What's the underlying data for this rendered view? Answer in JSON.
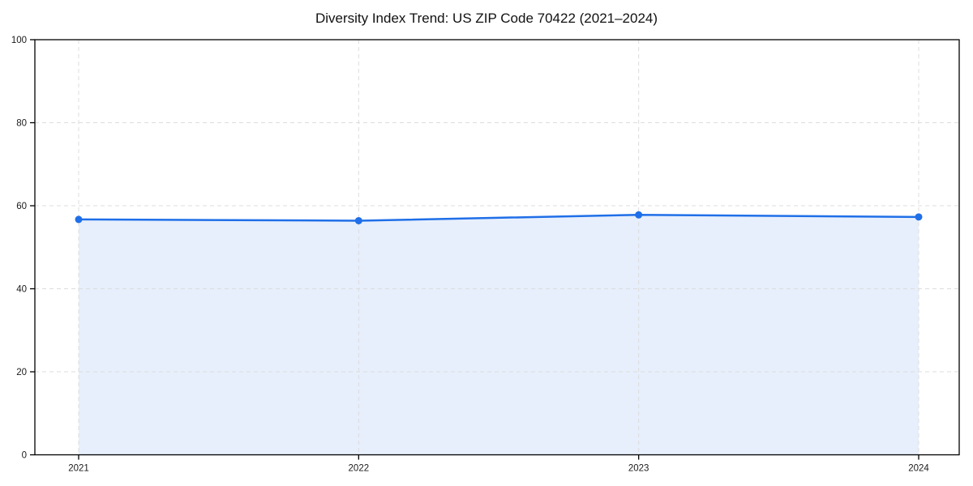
{
  "chart_data": {
    "type": "area",
    "title": "Diversity Index Trend: US ZIP Code 70422 (2021–2024)",
    "x_categories": [
      "2021",
      "2022",
      "2023",
      "2024"
    ],
    "series": [
      {
        "name": "Diversity Index",
        "values": [
          56.7,
          56.4,
          57.8,
          57.3
        ]
      }
    ],
    "xlabel": "",
    "ylabel": "",
    "ylim": [
      0,
      100
    ],
    "yticks": [
      0,
      20,
      40,
      60,
      80,
      100
    ],
    "grid": "dashed, both axes",
    "legend": "none",
    "marker": "filled-circle",
    "colors": {
      "line": "#1f6fe8",
      "fill": "#e7effc",
      "grid": "#dcdcdc",
      "axis": "#000000",
      "tick_text": "#1a1a1a",
      "title_text": "#111111",
      "background": "#ffffff"
    }
  }
}
